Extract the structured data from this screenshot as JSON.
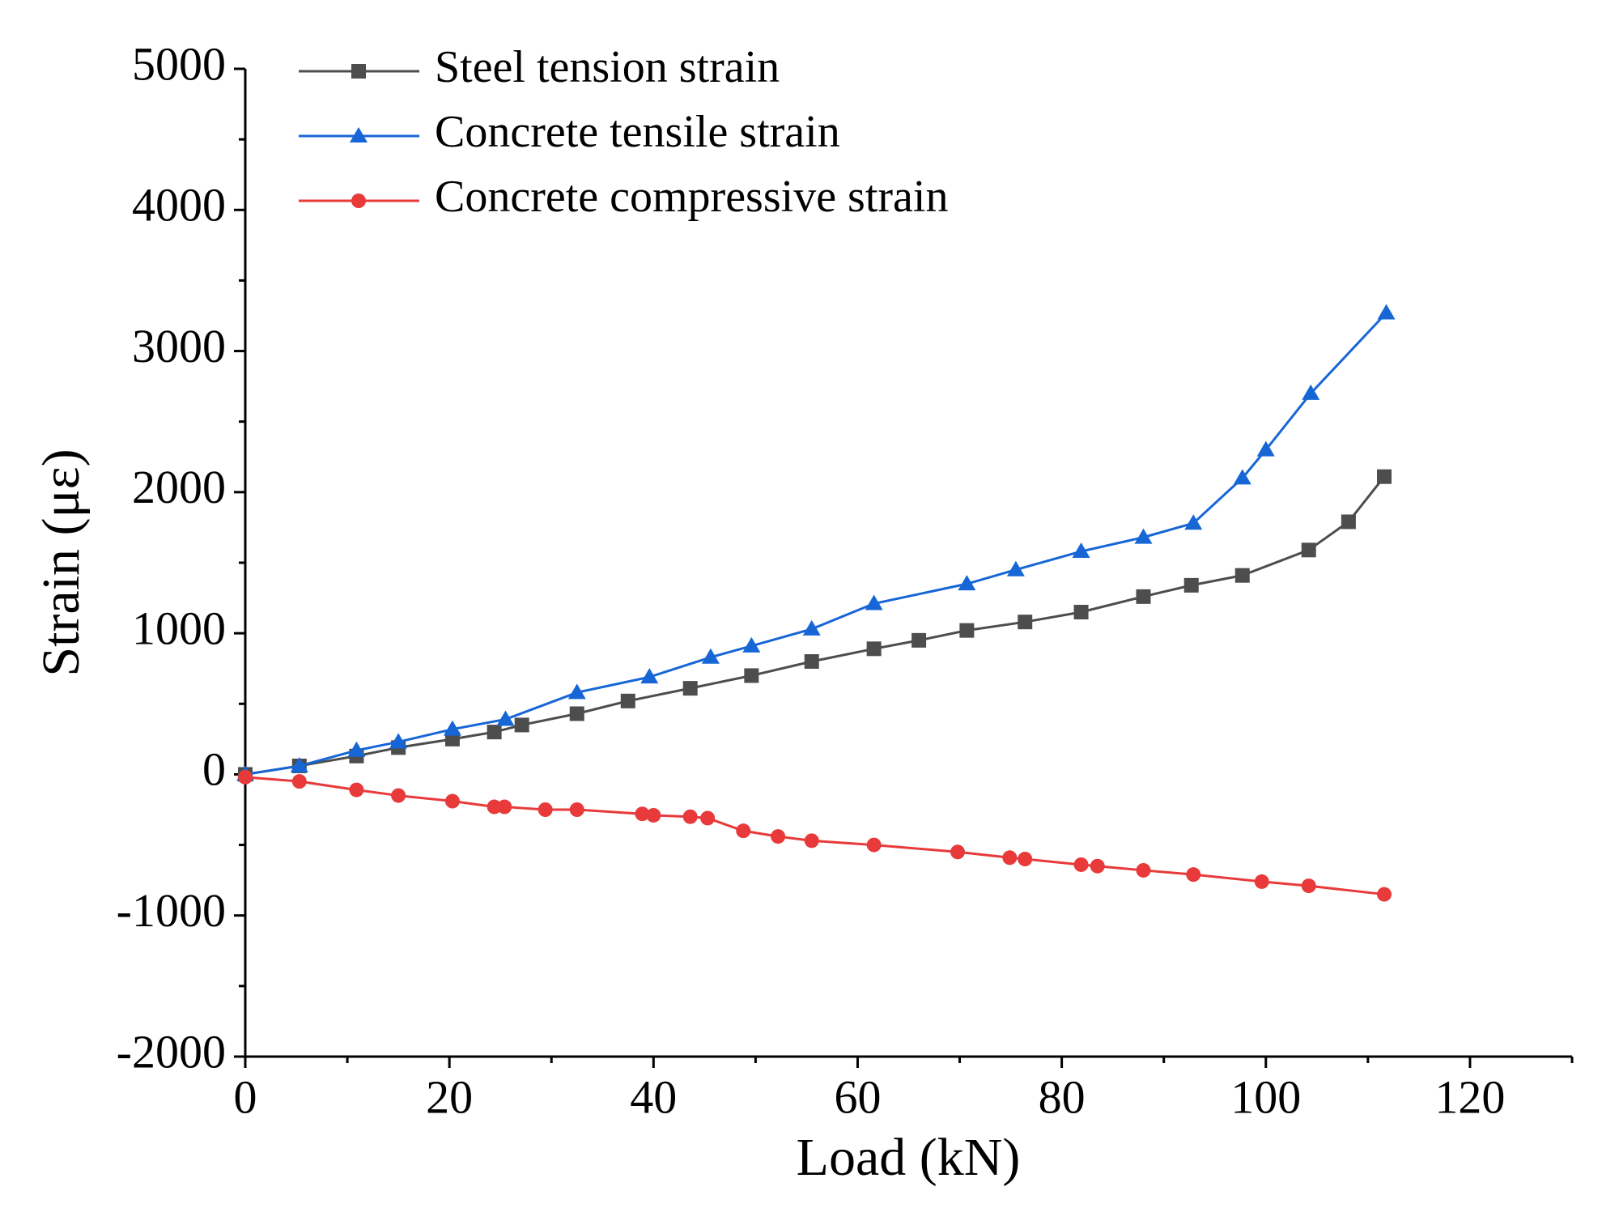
{
  "chart_data": {
    "type": "line",
    "x_label": "Load (kN)",
    "y_label": "Strain (με)",
    "xlim": [
      0,
      130
    ],
    "xticks": [
      0,
      20,
      40,
      60,
      80,
      100,
      120
    ],
    "ylim": [
      -2000,
      5000
    ],
    "yticks": [
      -2000,
      -1000,
      0,
      1000,
      2000,
      3000,
      4000,
      5000
    ],
    "grid": false,
    "legend": "upper left",
    "series": [
      {
        "name": "Steel tension strain",
        "color": "#4d4d4d",
        "marker": "square",
        "x": [
          0,
          5.3,
          10.9,
          15,
          20.3,
          24.4,
          27.1,
          32.5,
          37.5,
          43.6,
          49.6,
          55.5,
          61.6,
          66,
          70.7,
          76.4,
          81.9,
          88,
          92.7,
          97.7,
          104.2,
          108.1,
          111.6
        ],
        "values": [
          0,
          60,
          130,
          190,
          250,
          300,
          350,
          430,
          520,
          610,
          700,
          800,
          890,
          950,
          1020,
          1080,
          1150,
          1260,
          1340,
          1410,
          1590,
          1790,
          2110
        ]
      },
      {
        "name": "Concrete tensile strain",
        "color": "#1766d6",
        "marker": "triangle",
        "x": [
          0,
          5.3,
          10.9,
          15,
          20.3,
          25.5,
          32.5,
          39.6,
          45.6,
          49.6,
          55.5,
          61.6,
          70.7,
          75.5,
          81.9,
          88,
          92.9,
          97.7,
          100,
          104.4,
          111.8
        ],
        "values": [
          0,
          60,
          170,
          230,
          320,
          390,
          580,
          690,
          830,
          910,
          1030,
          1210,
          1350,
          1450,
          1580,
          1680,
          1780,
          2100,
          2300,
          2700,
          3270
        ]
      },
      {
        "name": "Concrete compressive strain",
        "color": "#e83a3a",
        "marker": "circle",
        "x": [
          0,
          5.3,
          10.9,
          15,
          20.3,
          24.4,
          25.4,
          29.4,
          32.5,
          38.9,
          40,
          43.6,
          45.3,
          48.8,
          52.2,
          55.5,
          61.6,
          69.8,
          74.9,
          76.4,
          81.9,
          83.5,
          88,
          92.9,
          99.6,
          104.2,
          111.6
        ],
        "values": [
          -20,
          -50,
          -110,
          -150,
          -190,
          -230,
          -230,
          -250,
          -250,
          -280,
          -290,
          -300,
          -310,
          -400,
          -440,
          -470,
          -500,
          -550,
          -590,
          -600,
          -640,
          -650,
          -680,
          -710,
          -760,
          -790,
          -850
        ]
      }
    ]
  }
}
